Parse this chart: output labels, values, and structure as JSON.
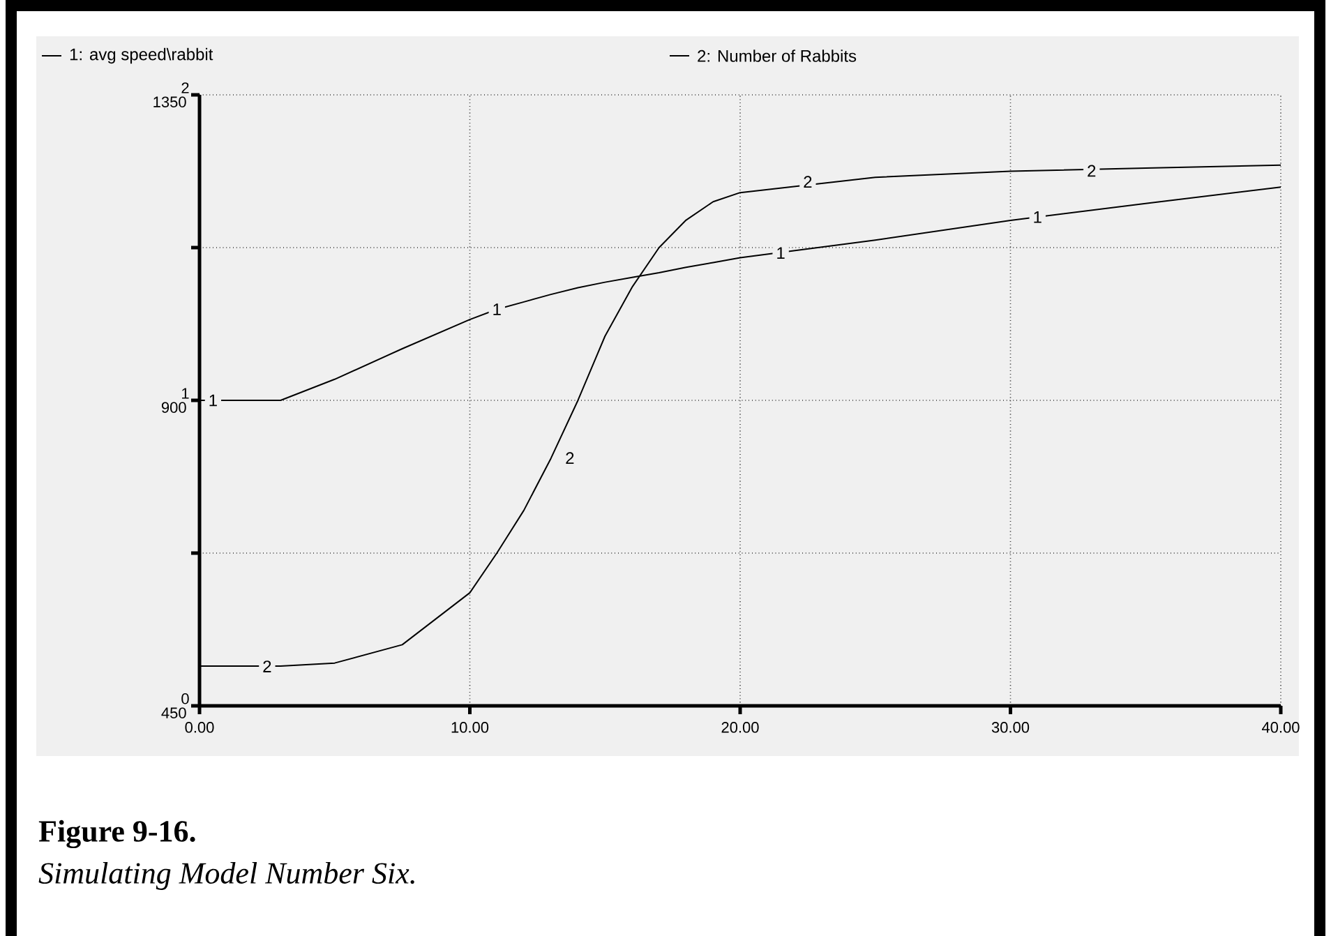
{
  "chart_data": {
    "type": "line",
    "x": [
      0,
      3,
      5,
      7.5,
      10,
      11,
      12,
      13,
      14,
      15,
      16,
      17,
      18,
      19,
      20,
      25,
      30,
      35,
      40
    ],
    "xlim": [
      0,
      40
    ],
    "xticks": [
      {
        "value": 0,
        "label": "0.00"
      },
      {
        "value": 10,
        "label": "10.00"
      },
      {
        "value": 20,
        "label": "20.00"
      },
      {
        "value": 30,
        "label": "30.00"
      },
      {
        "value": 40,
        "label": "40.00"
      }
    ],
    "ylim": [
      450,
      1350
    ],
    "yticks": [
      450,
      {
        "value": 675,
        "label": null
      },
      900,
      {
        "value": 1125,
        "label": null
      },
      1350
    ],
    "y2lim": [
      0,
      2
    ],
    "y2ticks": [
      0,
      1,
      2
    ],
    "series": [
      {
        "name": "1: avg speed\\rabbit",
        "color": "#000000",
        "values": [
          900,
          900,
          931,
          976,
          1019,
          1034,
          1045,
          1056,
          1066,
          1074,
          1081,
          1088,
          1096,
          1103,
          1110,
          1136,
          1165,
          1190,
          1214
        ]
      },
      {
        "name": "2: Number of Rabbits",
        "color": "#000000",
        "axis": "y2",
        "values": [
          0.13,
          0.13,
          0.14,
          0.2,
          0.37,
          0.5,
          0.64,
          0.81,
          1.0,
          1.21,
          1.37,
          1.5,
          1.59,
          1.65,
          1.68,
          1.73,
          1.75,
          1.76,
          1.77
        ]
      }
    ],
    "grid": true,
    "legend": "top",
    "annotations": [
      {
        "text": "1",
        "x": 0.5,
        "y": 900
      },
      {
        "text": "1",
        "x": 11,
        "y": 1034
      },
      {
        "text": "1",
        "x": 21.5,
        "y": 1117
      },
      {
        "text": "1",
        "x": 31,
        "y": 1170
      },
      {
        "text": "2",
        "x": 2.5,
        "y": 508
      },
      {
        "text": "2",
        "x": 13.7,
        "y": 815
      },
      {
        "text": "2",
        "x": 22.5,
        "y": 1222
      },
      {
        "text": "2",
        "x": 33,
        "y": 1238
      },
      "Figure 9-16.",
      "Simulating Model Number Six."
    ]
  }
}
